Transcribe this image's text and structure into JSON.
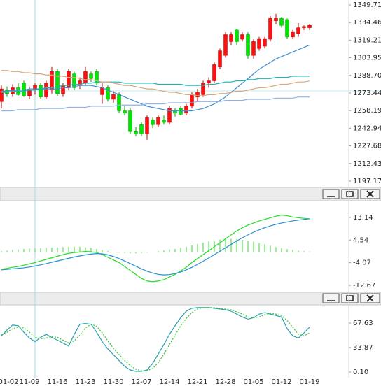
{
  "chart_data": [
    {
      "type": "candlestick",
      "up_color": "#ff1010",
      "down_color": "#00e600",
      "open": [
        1266,
        1276,
        1273,
        1278,
        1282,
        1271,
        1276,
        1280,
        1270,
        1276,
        1292,
        1273,
        1278,
        1290,
        1280,
        1282,
        1290,
        1292,
        1272,
        1278,
        1268,
        1272,
        1258,
        1258,
        1240,
        1246,
        1238,
        1250,
        1246,
        1250,
        1248,
        1258,
        1260,
        1256,
        1262,
        1270,
        1272,
        1282,
        1284,
        1296,
        1306,
        1318,
        1328,
        1320,
        1324,
        1306,
        1312,
        1314,
        1320,
        1336,
        1338,
        1337,
        1322,
        1325,
        1330,
        1330
      ],
      "high": [
        1280,
        1279,
        1281,
        1282,
        1284,
        1279,
        1282,
        1282,
        1284,
        1296,
        1294,
        1282,
        1294,
        1292,
        1287,
        1296,
        1292,
        1294,
        1282,
        1280,
        1275,
        1274,
        1262,
        1260,
        1244,
        1248,
        1254,
        1252,
        1254,
        1254,
        1262,
        1260,
        1262,
        1264,
        1274,
        1277,
        1284,
        1287,
        1300,
        1312,
        1326,
        1326,
        1329,
        1326,
        1326,
        1320,
        1322,
        1322,
        1340,
        1342,
        1339,
        1338,
        1328,
        1334,
        1332,
        1333
      ],
      "low": [
        1260,
        1270,
        1270,
        1271,
        1270,
        1268,
        1272,
        1268,
        1268,
        1273,
        1271,
        1270,
        1276,
        1276,
        1277,
        1280,
        1283,
        1280,
        1264,
        1266,
        1265,
        1256,
        1254,
        1238,
        1236,
        1236,
        1233,
        1243,
        1244,
        1246,
        1246,
        1253,
        1254,
        1254,
        1260,
        1266,
        1270,
        1278,
        1282,
        1294,
        1304,
        1315,
        1315,
        1318,
        1303,
        1303,
        1310,
        1312,
        1318,
        1333,
        1330,
        1320,
        1320,
        1322,
        1328,
        1328
      ],
      "close": [
        1277,
        1273,
        1278,
        1272,
        1271,
        1276,
        1280,
        1270,
        1282,
        1292,
        1273,
        1280,
        1292,
        1278,
        1284,
        1292,
        1286,
        1282,
        1278,
        1268,
        1272,
        1258,
        1256,
        1240,
        1238,
        1238,
        1252,
        1246,
        1252,
        1248,
        1260,
        1256,
        1255,
        1262,
        1272,
        1274,
        1282,
        1284,
        1298,
        1310,
        1324,
        1324,
        1318,
        1324,
        1306,
        1318,
        1320,
        1320,
        1338,
        1338,
        1332,
        1322,
        1326,
        1330,
        1331,
        1332
      ],
      "series": [
        {
          "color": "#3d8fd6",
          "values": [
            1275,
            1275,
            1276,
            1276,
            1276,
            1277,
            1277,
            1277,
            1277,
            1277,
            1277,
            1278,
            1278,
            1279,
            1280,
            1280,
            1280,
            1279,
            1278,
            1276,
            1274,
            1272,
            1270,
            1268,
            1266,
            1264,
            1262,
            1261,
            1260,
            1259,
            1258,
            1258,
            1258,
            1258,
            1258,
            1259,
            1260,
            1262,
            1264,
            1267,
            1270,
            1274,
            1278,
            1282,
            1286,
            1290,
            1294,
            1297,
            1300,
            1303,
            1305,
            1307,
            1309,
            1311,
            1313,
            1315
          ]
        },
        {
          "color": "#1fb3b3",
          "values": [
            1274,
            1274,
            1275,
            1275,
            1275,
            1276,
            1276,
            1277,
            1278,
            1278,
            1279,
            1280,
            1280,
            1281,
            1281,
            1282,
            1282,
            1283,
            1283,
            1283,
            1283,
            1283,
            1282,
            1282,
            1282,
            1282,
            1282,
            1282,
            1281,
            1281,
            1281,
            1281,
            1281,
            1280,
            1280,
            1280,
            1280,
            1281,
            1281,
            1282,
            1283,
            1283,
            1284,
            1284,
            1285,
            1285,
            1286,
            1286,
            1286,
            1287,
            1287,
            1287,
            1288,
            1288,
            1288,
            1288
          ]
        },
        {
          "color": "#d6a87c",
          "values": [
            1293,
            1293,
            1292,
            1292,
            1291,
            1291,
            1290,
            1290,
            1289,
            1289,
            1288,
            1288,
            1287,
            1287,
            1286,
            1285,
            1285,
            1284,
            1283,
            1283,
            1282,
            1281,
            1280,
            1280,
            1279,
            1278,
            1277,
            1277,
            1276,
            1275,
            1274,
            1274,
            1273,
            1272,
            1272,
            1271,
            1271,
            1272,
            1272,
            1273,
            1273,
            1274,
            1275,
            1275,
            1276,
            1277,
            1278,
            1278,
            1279,
            1280,
            1281,
            1281,
            1282,
            1283,
            1283,
            1284
          ]
        },
        {
          "color": "#8fb2e2",
          "values": [
            1258,
            1258,
            1258,
            1259,
            1259,
            1259,
            1259,
            1260,
            1260,
            1260,
            1260,
            1260,
            1261,
            1261,
            1261,
            1261,
            1262,
            1262,
            1262,
            1262,
            1262,
            1263,
            1263,
            1263,
            1263,
            1263,
            1264,
            1264,
            1264,
            1264,
            1265,
            1265,
            1265,
            1265,
            1265,
            1266,
            1266,
            1266,
            1266,
            1266,
            1267,
            1267,
            1267,
            1267,
            1268,
            1268,
            1268,
            1268,
            1268,
            1269,
            1269,
            1269,
            1269,
            1270,
            1270,
            1270
          ]
        }
      ],
      "ylim": [
        1191.7,
        1353.95
      ],
      "yticks": [
        1349.71,
        1334.46,
        1319.21,
        1303.95,
        {
          "value": 1288.7,
          "label": "1288.70"
        },
        1273.44,
        1258.19,
        1242.94,
        1227.68,
        1212.43,
        1197.17
      ]
    },
    {
      "type": "macd",
      "series": [
        {
          "style": "bar",
          "color": "#33dd33",
          "values": [
            0.3,
            0.5,
            0.8,
            1,
            1.2,
            1.3,
            1.4,
            1.5,
            1.6,
            1.7,
            1.8,
            1.9,
            2,
            2,
            2,
            1.8,
            1.6,
            1.2,
            0.8,
            0.4,
            0.1,
            -0.2,
            -0.4,
            -0.5,
            -0.5,
            -0.4,
            -0.2,
            0,
            0.3,
            0.6,
            1,
            1.2,
            1.6,
            2,
            2.5,
            3,
            3.5,
            4,
            4.4,
            4.7,
            4.9,
            5,
            4.9,
            4.6,
            4.3,
            3.9,
            3.4,
            2.9,
            2.4,
            1.9,
            1.5,
            1.1,
            0.8,
            0.5,
            0.3,
            0.2
          ]
        },
        {
          "style": "line",
          "color": "#22dd22",
          "values": [
            -6.5,
            -6.2,
            -5.8,
            -5.5,
            -5,
            -4.5,
            -4,
            -3.4,
            -2.8,
            -2.2,
            -1.6,
            -1,
            -0.5,
            -0.2,
            0,
            0.2,
            0.1,
            -0.2,
            -1,
            -2,
            -3,
            -4,
            -5.5,
            -7,
            -8.5,
            -10,
            -11,
            -11.3,
            -11,
            -10.5,
            -9.5,
            -8.5,
            -7.2,
            -5.8,
            -4,
            -2.5,
            -1,
            0.5,
            2,
            3.5,
            5,
            6.5,
            8,
            9.2,
            10.2,
            11,
            11.8,
            12.4,
            13,
            13.6,
            14,
            13.8,
            13.3,
            13,
            12.8,
            12.6
          ]
        },
        {
          "style": "line",
          "color": "#2a8fd0",
          "values": [
            -6.8,
            -6.6,
            -6.4,
            -6.2,
            -6,
            -5.7,
            -5.3,
            -4.9,
            -4.4,
            -3.9,
            -3.4,
            -2.9,
            -2.4,
            -1.9,
            -1.5,
            -1.1,
            -0.8,
            -0.6,
            -0.7,
            -1.1,
            -1.7,
            -2.5,
            -3.4,
            -4.4,
            -5.4,
            -6.4,
            -7.3,
            -8,
            -8.5,
            -8.7,
            -8.6,
            -8.2,
            -7.6,
            -6.8,
            -5.8,
            -4.7,
            -3.5,
            -2.3,
            -1,
            0.3,
            1.6,
            2.9,
            4.2,
            5.4,
            6.5,
            7.5,
            8.4,
            9.2,
            9.9,
            10.5,
            11,
            11.4,
            11.8,
            12.1,
            12.4,
            12.6
          ]
        }
      ],
      "ylim": [
        -15.32,
        19.49
      ],
      "yticks": [
        13.14,
        4.54,
        -4.07,
        -12.67
      ]
    },
    {
      "type": "line",
      "categories": [
        "01-02",
        null,
        null,
        null,
        null,
        "11-09",
        null,
        null,
        null,
        null,
        "11-16",
        null,
        null,
        null,
        null,
        "11-23",
        null,
        null,
        null,
        null,
        "11-30",
        null,
        null,
        null,
        null,
        "12-07",
        null,
        null,
        null,
        null,
        "12-14",
        null,
        null,
        null,
        null,
        "12-21",
        null,
        null,
        null,
        null,
        "12-28",
        null,
        null,
        null,
        null,
        "01-05",
        null,
        null,
        null,
        null,
        "01-12",
        null,
        null,
        null,
        null,
        "01-19"
      ],
      "series": [
        {
          "style": "line",
          "color": "#2a9fb0",
          "values": [
            50,
            58,
            65,
            64,
            55,
            47,
            42,
            48,
            52,
            48,
            44,
            40,
            36,
            52,
            66,
            67,
            66,
            55,
            42,
            32,
            24,
            16,
            8,
            3,
            1,
            1,
            3,
            12,
            25,
            38,
            52,
            64,
            75,
            84,
            88,
            89,
            89,
            89,
            88,
            87,
            86,
            84,
            80,
            76,
            73,
            75,
            80,
            82,
            80,
            78,
            76,
            60,
            50,
            47,
            54,
            62
          ]
        },
        {
          "style": "dotted",
          "color": "#33cc33",
          "values": [
            52,
            55,
            60,
            62,
            61,
            55,
            48,
            46,
            47,
            49,
            48,
            44,
            40,
            43,
            51,
            61,
            66,
            63,
            54,
            43,
            33,
            24,
            16,
            9,
            4,
            2,
            2,
            5,
            13,
            25,
            38,
            51,
            64,
            74,
            82,
            87,
            89,
            89,
            89,
            88,
            87,
            86,
            83,
            80,
            76,
            75,
            76,
            79,
            81,
            80,
            78,
            71,
            62,
            52,
            50,
            54
          ]
        }
      ],
      "ylim": [
        -7.6,
        92.7
      ],
      "yticks": [
        67.63,
        33.87,
        {
          "value": 0.1,
          "label": "0.10"
        }
      ]
    }
  ]
}
